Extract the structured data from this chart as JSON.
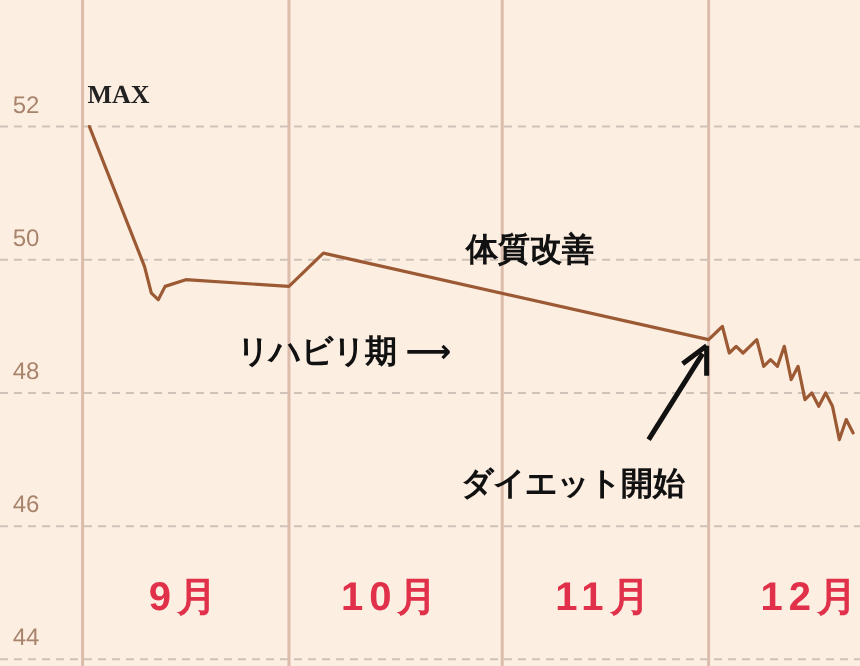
{
  "chart_data": {
    "type": "line",
    "x": [
      "--09-02",
      "--09-10",
      "--09-11",
      "--09-12",
      "--09-13",
      "--09-16",
      "--10-01",
      "--10-06",
      "--12-01",
      "--12-02",
      "--12-03",
      "--12-04",
      "--12-05",
      "--12-06",
      "--12-07",
      "--12-08",
      "--12-09",
      "--12-10",
      "--12-11",
      "--12-12",
      "--12-13",
      "--12-14",
      "--12-15",
      "--12-16",
      "--12-17",
      "--12-18",
      "--12-19",
      "--12-20",
      "--12-21",
      "--12-22"
    ],
    "series": [
      {
        "color": "#9b5a34",
        "values": [
          52.0,
          49.9,
          49.5,
          49.4,
          49.6,
          49.7,
          49.6,
          50.1,
          48.8,
          48.9,
          49.0,
          48.6,
          48.7,
          48.6,
          48.7,
          48.8,
          48.4,
          48.5,
          48.4,
          48.7,
          48.2,
          48.4,
          47.9,
          48.0,
          47.8,
          48.0,
          47.8,
          47.3,
          47.6,
          47.4
        ]
      }
    ],
    "xlim": [
      "--08-20",
      "--12-23"
    ],
    "xticks": [
      {
        "value": "--09-16",
        "label": "9月"
      },
      {
        "value": "--10-16",
        "label": "10月"
      },
      {
        "value": "--11-16",
        "label": "11月"
      },
      {
        "value": "--12-16",
        "label": "12月"
      }
    ],
    "ylim": [
      43.9,
      53.9
    ],
    "yticks": [
      44,
      46,
      48,
      50,
      52
    ],
    "grid": "y",
    "ref_lines": [
      {
        "axis": "x",
        "value": "--09-01",
        "color": "#dcbcaa"
      },
      {
        "axis": "x",
        "value": "--10-01",
        "color": "#dcbcaa"
      },
      {
        "axis": "x",
        "value": "--11-01",
        "color": "#dcbcaa"
      },
      {
        "axis": "x",
        "value": "--12-01",
        "color": "#dcbcaa"
      }
    ],
    "annotations": [
      {
        "text": "MAX",
        "x": "--09-02",
        "y": 52.0
      },
      "体質改善",
      "リハビリ期 ⟶",
      {
        "text": "ダイエット開始",
        "x": "--12-01",
        "y": 48.8
      }
    ],
    "marker": "none",
    "line_style": "solid"
  }
}
